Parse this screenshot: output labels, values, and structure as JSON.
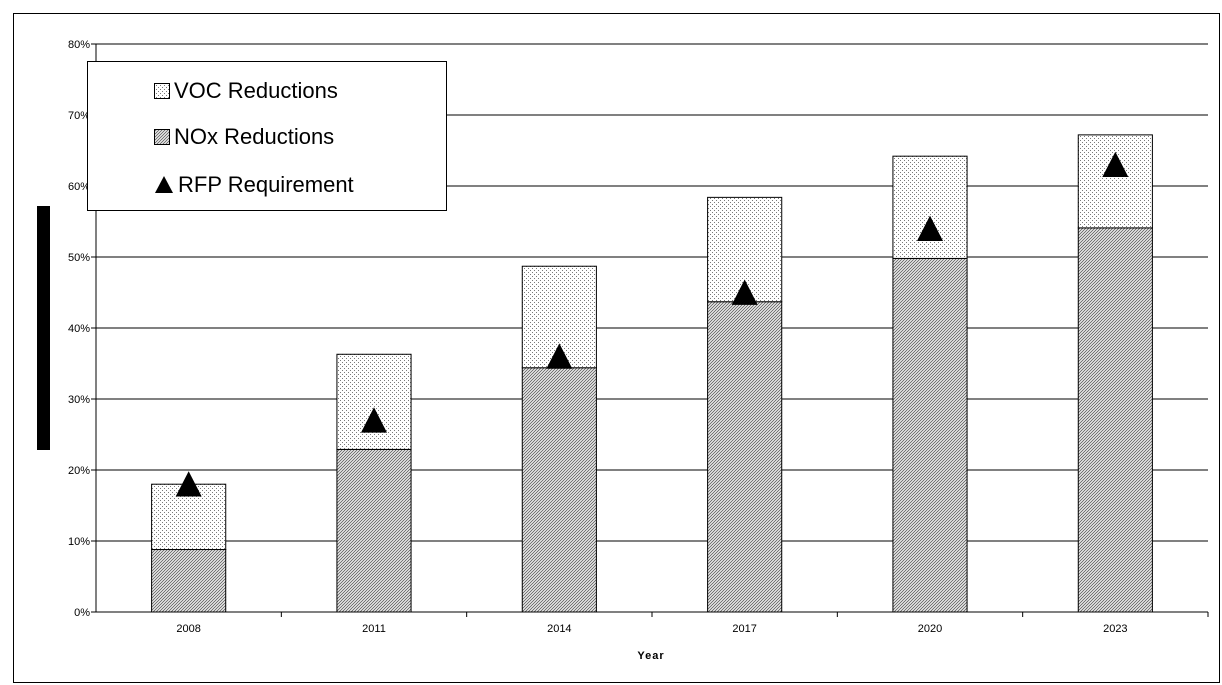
{
  "chart_data": {
    "type": "bar",
    "stacked": true,
    "categories": [
      "2008",
      "2011",
      "2014",
      "2017",
      "2020",
      "2023"
    ],
    "series": [
      {
        "name": "NOx Reductions",
        "kind": "bar",
        "pattern": "diagonal-hatch",
        "values": [
          8.8,
          22.9,
          34.4,
          43.7,
          49.8,
          54.1
        ]
      },
      {
        "name": "VOC Reductions",
        "kind": "bar",
        "pattern": "dotted",
        "values": [
          9.2,
          13.4,
          14.3,
          14.7,
          14.4,
          13.1
        ]
      },
      {
        "name": "RFP Requirement",
        "kind": "marker",
        "marker": "triangle",
        "values": [
          18,
          27,
          36,
          45,
          54,
          63
        ]
      }
    ],
    "xlabel": "Year",
    "ylabel": "",
    "ylim": [
      0,
      80
    ],
    "yticks": [
      "0%",
      "10%",
      "20%",
      "30%",
      "40%",
      "50%",
      "60%",
      "70%",
      "80%"
    ],
    "grid": true,
    "legend_position": "top-left"
  },
  "legend": {
    "items": [
      {
        "label": "VOC Reductions",
        "icon": "dotted-square-icon"
      },
      {
        "label": "NOx Reductions",
        "icon": "hatched-square-icon"
      },
      {
        "label": "RFP Requirement",
        "icon": "triangle-icon"
      }
    ]
  }
}
